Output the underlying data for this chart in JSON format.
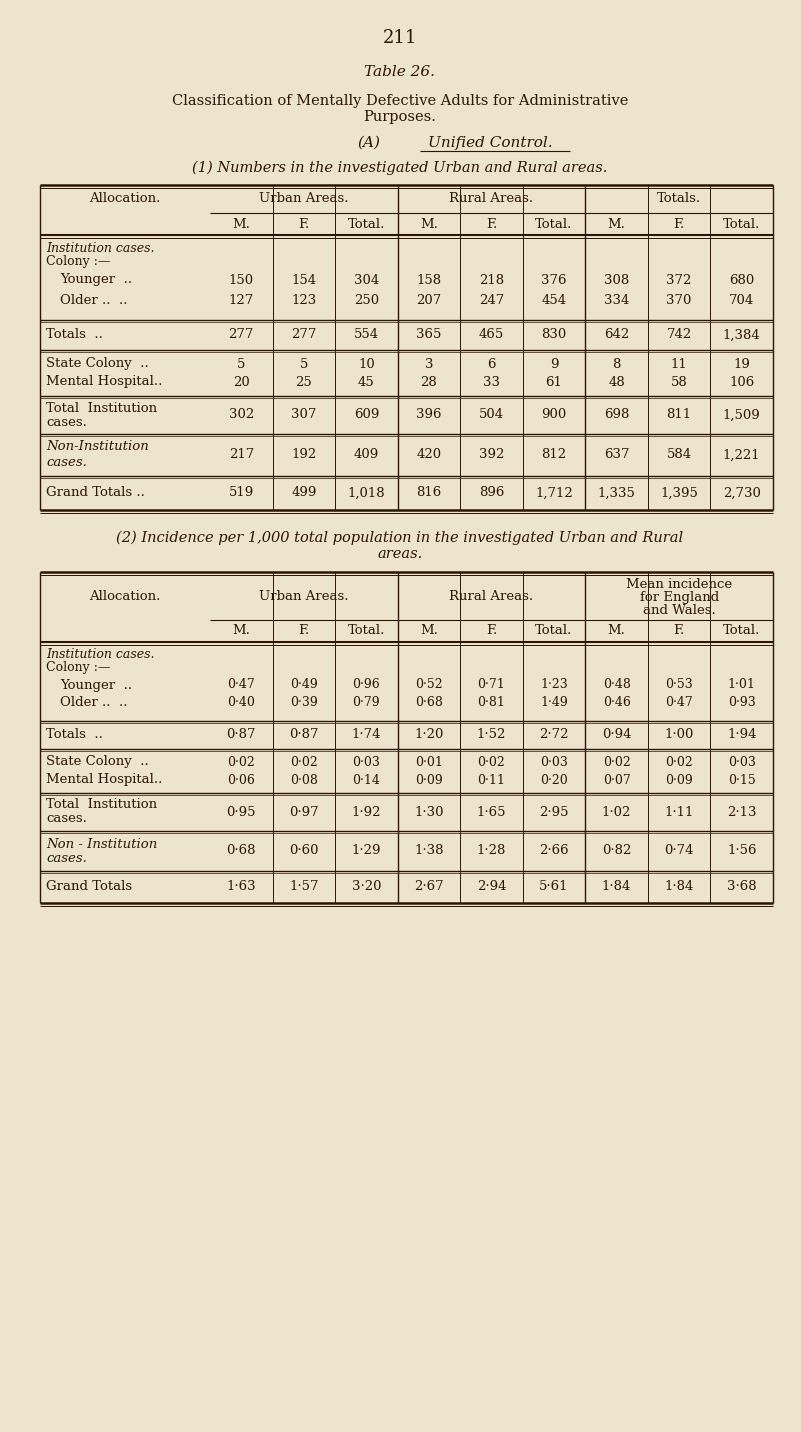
{
  "page_number": "211",
  "table_title": "Table 26.",
  "main_title_line1": "Classification of Mentally Defective Adults for Administrative",
  "main_title_line2": "Purposes.",
  "section_a_prefix": "(A)",
  "section_a_text": "Unified Control.",
  "section_1_title": "(1) Numbers in the investigated Urban and Rural areas.",
  "section_2_title_line1": "(2) Incidence per 1,000 total population in the investigated Urban and Rural",
  "section_2_title_line2": "areas.",
  "bg_color": "#ede4ce",
  "text_color": "#2e1503",
  "table1": {
    "col_groups": [
      "Urban Areas.",
      "Rural Areas.",
      "Totals."
    ],
    "sub_cols": [
      "M.",
      "F.",
      "Total."
    ],
    "rows": [
      {
        "labels": [
          "Institution cases.",
          "Colony :—",
          "Younger  ..",
          "Older ..  .."
        ],
        "label_styles": [
          "italic",
          "normal",
          "normal",
          "normal"
        ],
        "label_indent": [
          0,
          0,
          14,
          14
        ],
        "data": [
          [
            "",
            "",
            "",
            "",
            "",
            "",
            "",
            "",
            ""
          ],
          [
            "",
            "",
            "",
            "",
            "",
            "",
            "",
            "",
            ""
          ],
          [
            "150",
            "154",
            "304",
            "158",
            "218",
            "376",
            "308",
            "372",
            "680"
          ],
          [
            "127",
            "123",
            "250",
            "207",
            "247",
            "454",
            "334",
            "370",
            "704"
          ]
        ]
      },
      {
        "labels": [
          "Totals  .."
        ],
        "label_styles": [
          "normal"
        ],
        "label_indent": [
          0
        ],
        "data": [
          [
            "277",
            "277",
            "554",
            "365",
            "465",
            "830",
            "642",
            "742",
            "1,384"
          ]
        ]
      },
      {
        "labels": [
          "State Colony  ..",
          "Mental Hospital.."
        ],
        "label_styles": [
          "normal",
          "normal"
        ],
        "label_indent": [
          0,
          0
        ],
        "data": [
          [
            "5",
            "5",
            "10",
            "3",
            "6",
            "9",
            "8",
            "11",
            "19"
          ],
          [
            "20",
            "25",
            "45",
            "28",
            "33",
            "61",
            "48",
            "58",
            "106"
          ]
        ]
      },
      {
        "labels": [
          "Total  Institution",
          "cases."
        ],
        "label_styles": [
          "normal",
          "normal"
        ],
        "label_indent": [
          0,
          0
        ],
        "data": [
          [
            "302",
            "307",
            "609",
            "396",
            "504",
            "900",
            "698",
            "811",
            "1,509"
          ],
          [
            "",
            "",
            "",
            "",
            "",
            "",
            "",
            "",
            ""
          ]
        ]
      },
      {
        "labels": [
          "Non-Institution",
          "cases."
        ],
        "label_styles": [
          "italic",
          "italic"
        ],
        "label_indent": [
          0,
          0
        ],
        "data": [
          [
            "217",
            "192",
            "409",
            "420",
            "392",
            "812",
            "637",
            "584",
            "1,221"
          ],
          [
            "",
            "",
            "",
            "",
            "",
            "",
            "",
            "",
            ""
          ]
        ]
      },
      {
        "labels": [
          "Grand Totals .."
        ],
        "label_styles": [
          "normal"
        ],
        "label_indent": [
          0
        ],
        "data": [
          [
            "519",
            "499",
            "1,018",
            "816",
            "896",
            "1,712",
            "1,335",
            "1,395",
            "2,730"
          ]
        ]
      }
    ]
  },
  "table2": {
    "col_groups": [
      "Urban Areas.",
      "Rural Areas.",
      "Mean incidence\nfor England\nand Wales."
    ],
    "sub_cols": [
      "M.",
      "F.",
      "Total."
    ],
    "rows": [
      {
        "labels": [
          "Institution cases.",
          "Colony :—",
          "Younger  ..",
          "Older ..  .."
        ],
        "label_styles": [
          "italic",
          "normal",
          "normal",
          "normal"
        ],
        "label_indent": [
          0,
          0,
          14,
          14
        ],
        "data": [
          [
            "",
            "",
            "",
            "",
            "",
            "",
            "",
            "",
            ""
          ],
          [
            "",
            "",
            "",
            "",
            "",
            "",
            "",
            "",
            ""
          ],
          [
            "0·47",
            "0·49",
            "0·96",
            "0·52",
            "0·71",
            "1·23",
            "0·48",
            "0·53",
            "1·01"
          ],
          [
            "0·40",
            "0·39",
            "0·79",
            "0·68",
            "0·81",
            "1·49",
            "0·46",
            "0·47",
            "0·93"
          ]
        ]
      },
      {
        "labels": [
          "Totals  .."
        ],
        "label_styles": [
          "normal"
        ],
        "label_indent": [
          0
        ],
        "data": [
          [
            "0·87",
            "0·87",
            "1·74",
            "1·20",
            "1·52",
            "2·72",
            "0·94",
            "1·00",
            "1·94"
          ]
        ]
      },
      {
        "labels": [
          "State Colony  ..",
          "Mental Hospital.."
        ],
        "label_styles": [
          "normal",
          "normal"
        ],
        "label_indent": [
          0,
          0
        ],
        "data": [
          [
            "0·02",
            "0·02",
            "0·03",
            "0·01",
            "0·02",
            "0·03",
            "0·02",
            "0·02",
            "0·03"
          ],
          [
            "0·06",
            "0·08",
            "0·14",
            "0·09",
            "0·11",
            "0·20",
            "0·07",
            "0·09",
            "0·15"
          ]
        ]
      },
      {
        "labels": [
          "Total  Institution",
          "cases."
        ],
        "label_styles": [
          "normal",
          "normal"
        ],
        "label_indent": [
          0,
          0
        ],
        "data": [
          [
            "0·95",
            "0·97",
            "1·92",
            "1·30",
            "1·65",
            "2·95",
            "1·02",
            "1·11",
            "2·13"
          ],
          [
            "",
            "",
            "",
            "",
            "",
            "",
            "",
            "",
            ""
          ]
        ]
      },
      {
        "labels": [
          "Non - Institution",
          "cases."
        ],
        "label_styles": [
          "italic",
          "italic"
        ],
        "label_indent": [
          0,
          0
        ],
        "data": [
          [
            "0·68",
            "0·60",
            "1·29",
            "1·38",
            "1·28",
            "2·66",
            "0·82",
            "0·74",
            "1·56"
          ],
          [
            "",
            "",
            "",
            "",
            "",
            "",
            "",
            "",
            ""
          ]
        ]
      },
      {
        "labels": [
          "Grand Totals"
        ],
        "label_styles": [
          "normal"
        ],
        "label_indent": [
          0
        ],
        "data": [
          [
            "1·63",
            "1·57",
            "3·20",
            "2·67",
            "2·94",
            "5·61",
            "1·84",
            "1·84",
            "3·68"
          ]
        ]
      }
    ]
  }
}
